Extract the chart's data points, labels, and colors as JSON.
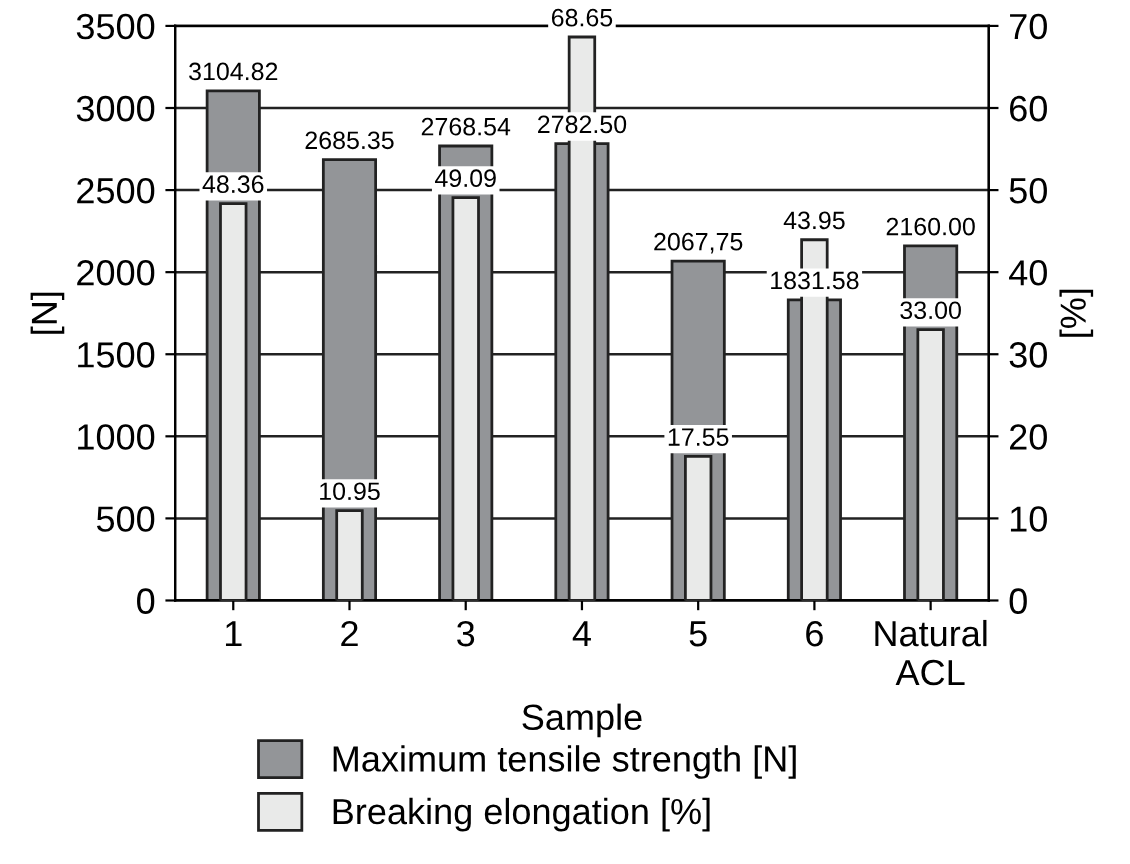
{
  "chart_data": {
    "type": "bar",
    "xlabel": "Sample",
    "ylabel": "[N]",
    "y2label": "[%]",
    "categories": [
      "1",
      "2",
      "3",
      "4",
      "5",
      "6",
      "Natural\nACL"
    ],
    "series": [
      {
        "name": "Maximum tensile strength [N]",
        "color": "#939598",
        "values": [
          3104.82,
          2685.35,
          2768.54,
          2782.5,
          2067.75,
          1831.58,
          2160.0
        ],
        "value_labels": [
          "3104.82",
          "2685.35",
          "2768.54",
          "2782.50",
          "2067,75",
          "1831.58",
          "2160.00"
        ]
      },
      {
        "name": "Breaking elongation [%]",
        "color": "#e9eae9",
        "axis": "y2",
        "values": [
          48.36,
          10.95,
          49.09,
          68.65,
          17.55,
          43.95,
          33.0
        ],
        "value_labels": [
          "48.36",
          "10.95",
          "49.09",
          "68.65",
          "17.55",
          "43.95",
          "33.00"
        ]
      }
    ],
    "ylim": [
      0,
      3500
    ],
    "yticks": [
      0,
      500,
      1000,
      1500,
      2000,
      2500,
      3000,
      3500
    ],
    "y2lim": [
      0,
      70
    ],
    "y2ticks": [
      0,
      10,
      20,
      30,
      40,
      50,
      60,
      70
    ],
    "grid": "y",
    "legend": "bottom"
  }
}
